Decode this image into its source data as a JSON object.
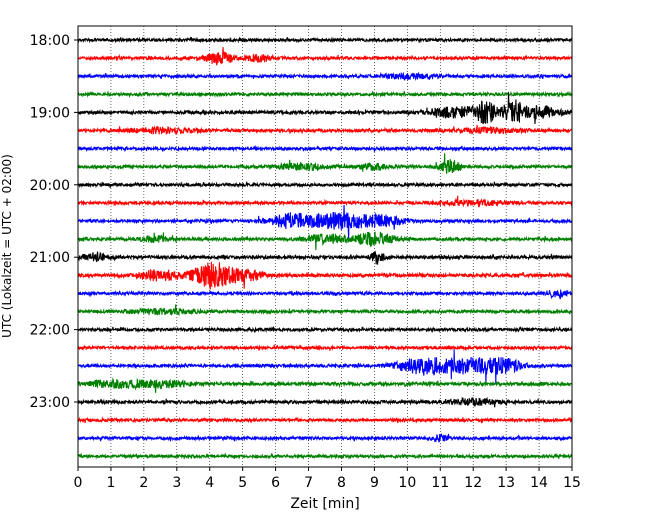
{
  "chart_data": {
    "type": "line",
    "title": "",
    "xlabel": "Zeit  [min]",
    "ylabel": "UTC (Lokalzeit = UTC + 02:00)",
    "xlim": [
      0,
      15
    ],
    "x_ticks": [
      "0",
      "1",
      "2",
      "3",
      "4",
      "5",
      "6",
      "7",
      "8",
      "9",
      "10",
      "11",
      "12",
      "13",
      "14",
      "15"
    ],
    "y_tick_labels": [
      "18:00",
      "19:00",
      "20:00",
      "21:00",
      "22:00",
      "23:00"
    ],
    "grid": "vertical dotted at each minute",
    "legend": "none",
    "trace_interval_min": 15,
    "colors": [
      "#000000",
      "#ff0000",
      "#0000ff",
      "#008000"
    ],
    "traces": [
      {
        "start": "18:00",
        "color": "#000000",
        "base_amp": 0.9,
        "events": []
      },
      {
        "start": "18:15",
        "color": "#ff0000",
        "base_amp": 0.9,
        "events": [
          {
            "t": 4.3,
            "amp": 4,
            "dur": 0.4
          },
          {
            "t": 5.5,
            "amp": 2,
            "dur": 0.4
          }
        ]
      },
      {
        "start": "18:30",
        "color": "#0000ff",
        "base_amp": 0.9,
        "events": [
          {
            "t": 10,
            "amp": 1.5,
            "dur": 0.8
          }
        ]
      },
      {
        "start": "18:45",
        "color": "#008000",
        "base_amp": 0.9,
        "events": []
      },
      {
        "start": "19:00",
        "color": "#000000",
        "base_amp": 1.0,
        "events": [
          {
            "t": 11.5,
            "amp": 3,
            "dur": 0.8
          },
          {
            "t": 12.4,
            "amp": 6,
            "dur": 0.3
          },
          {
            "t": 13.2,
            "amp": 7,
            "dur": 0.3
          },
          {
            "t": 14,
            "amp": 3.5,
            "dur": 0.6
          }
        ]
      },
      {
        "start": "19:15",
        "color": "#ff0000",
        "base_amp": 0.9,
        "events": [
          {
            "t": 2.5,
            "amp": 1.5,
            "dur": 1
          },
          {
            "t": 12.5,
            "amp": 1.5,
            "dur": 1
          }
        ]
      },
      {
        "start": "19:30",
        "color": "#0000ff",
        "base_amp": 0.9,
        "events": []
      },
      {
        "start": "19:45",
        "color": "#008000",
        "base_amp": 0.9,
        "events": [
          {
            "t": 6.8,
            "amp": 2,
            "dur": 0.7
          },
          {
            "t": 9,
            "amp": 2,
            "dur": 0.4
          },
          {
            "t": 11.3,
            "amp": 4,
            "dur": 0.3
          }
        ]
      },
      {
        "start": "20:00",
        "color": "#000000",
        "base_amp": 0.9,
        "events": []
      },
      {
        "start": "20:15",
        "color": "#ff0000",
        "base_amp": 0.9,
        "events": [
          {
            "t": 12,
            "amp": 1.5,
            "dur": 1
          }
        ]
      },
      {
        "start": "20:30",
        "color": "#0000ff",
        "base_amp": 0.9,
        "events": [
          {
            "t": 6.5,
            "amp": 4.5,
            "dur": 0.7
          },
          {
            "t": 8,
            "amp": 5,
            "dur": 0.8
          },
          {
            "t": 9.3,
            "amp": 3,
            "dur": 0.6
          }
        ]
      },
      {
        "start": "20:45",
        "color": "#008000",
        "base_amp": 0.9,
        "events": [
          {
            "t": 2.3,
            "amp": 2,
            "dur": 0.4
          },
          {
            "t": 7.5,
            "amp": 3,
            "dur": 0.6
          },
          {
            "t": 9,
            "amp": 4,
            "dur": 0.6
          }
        ]
      },
      {
        "start": "21:00",
        "color": "#000000",
        "base_amp": 1.0,
        "events": [
          {
            "t": 0.5,
            "amp": 2,
            "dur": 0.4
          },
          {
            "t": 9.1,
            "amp": 4,
            "dur": 0.2
          }
        ]
      },
      {
        "start": "21:15",
        "color": "#ff0000",
        "base_amp": 1.0,
        "events": [
          {
            "t": 2.5,
            "amp": 3,
            "dur": 0.6
          },
          {
            "t": 4.1,
            "amp": 8,
            "dur": 0.6
          },
          {
            "t": 5.2,
            "amp": 3,
            "dur": 0.5
          }
        ]
      },
      {
        "start": "21:30",
        "color": "#0000ff",
        "base_amp": 0.9,
        "events": [
          {
            "t": 14.5,
            "amp": 2,
            "dur": 0.3
          }
        ]
      },
      {
        "start": "21:45",
        "color": "#008000",
        "base_amp": 0.9,
        "events": [
          {
            "t": 2.5,
            "amp": 1.5,
            "dur": 1
          }
        ]
      },
      {
        "start": "22:00",
        "color": "#000000",
        "base_amp": 0.9,
        "events": []
      },
      {
        "start": "22:15",
        "color": "#ff0000",
        "base_amp": 0.9,
        "events": []
      },
      {
        "start": "22:30",
        "color": "#0000ff",
        "base_amp": 0.9,
        "events": [
          {
            "t": 10.5,
            "amp": 5,
            "dur": 0.8
          },
          {
            "t": 12,
            "amp": 4.5,
            "dur": 0.9
          },
          {
            "t": 13,
            "amp": 3,
            "dur": 0.5
          }
        ]
      },
      {
        "start": "22:45",
        "color": "#008000",
        "base_amp": 1.0,
        "events": [
          {
            "t": 1,
            "amp": 2,
            "dur": 0.8
          },
          {
            "t": 2.5,
            "amp": 2,
            "dur": 0.8
          }
        ]
      },
      {
        "start": "23:00",
        "color": "#000000",
        "base_amp": 1.0,
        "events": [
          {
            "t": 12,
            "amp": 2,
            "dur": 0.6
          }
        ]
      },
      {
        "start": "23:15",
        "color": "#ff0000",
        "base_amp": 0.9,
        "events": []
      },
      {
        "start": "23:30",
        "color": "#0000ff",
        "base_amp": 0.9,
        "events": [
          {
            "t": 11,
            "amp": 2.5,
            "dur": 0.2
          }
        ]
      },
      {
        "start": "23:45",
        "color": "#008000",
        "base_amp": 0.9,
        "events": []
      }
    ]
  }
}
